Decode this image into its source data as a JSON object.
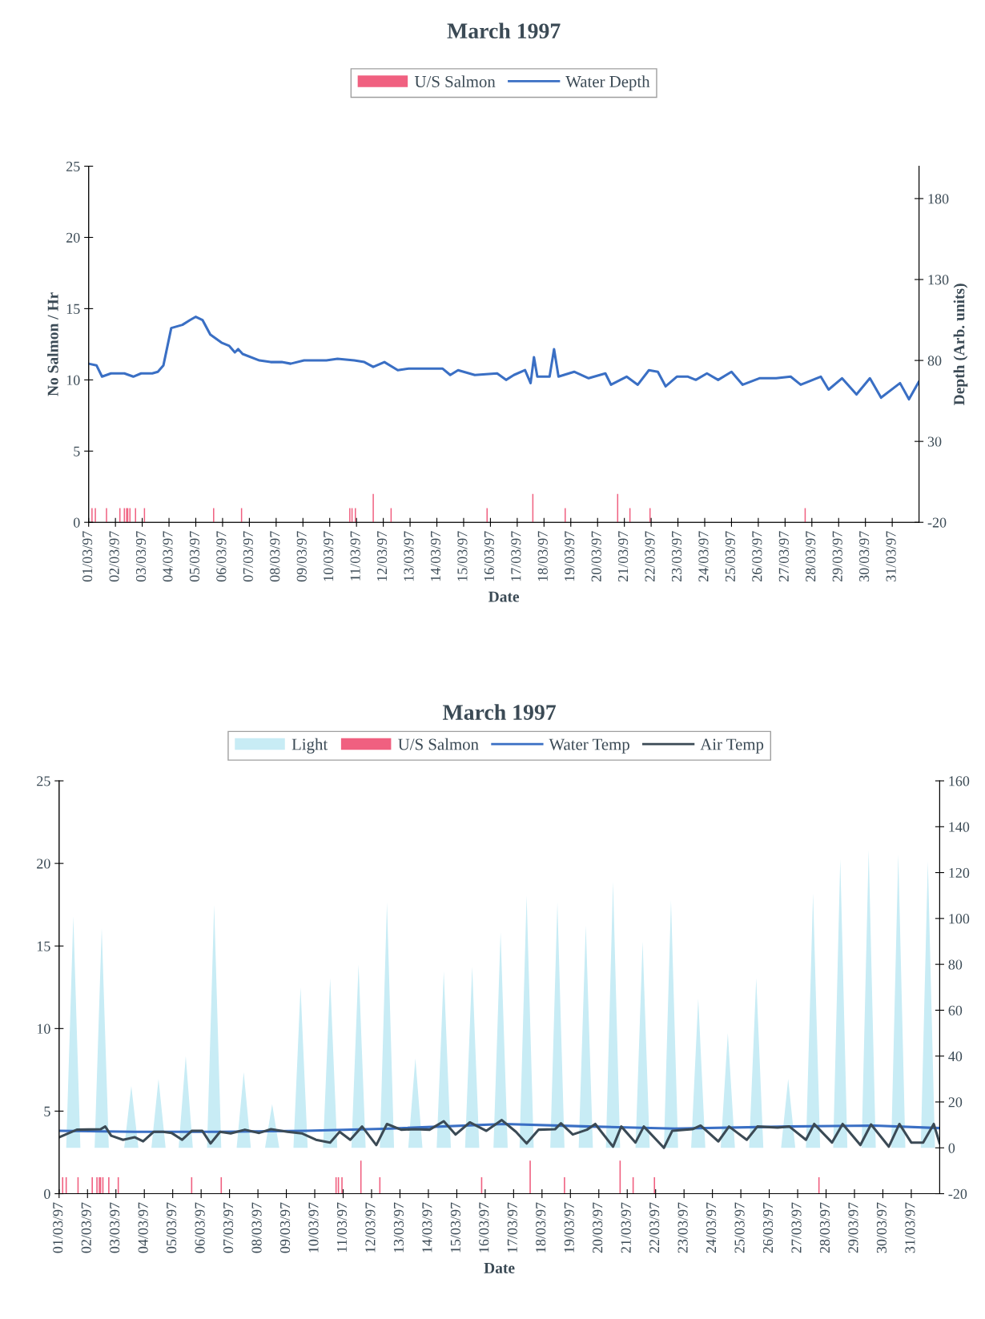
{
  "chart_data": [
    {
      "type": "line",
      "title": "March 1997",
      "xlabel": "Date",
      "ylabel": "No Salmon / Hr",
      "y2label": "Depth (Arb. units)",
      "legend": "top",
      "xlim": [
        "1997-03-01",
        "1997-04-01"
      ],
      "xticks": [
        {
          "value": "1997-03-01",
          "label": "01/03/97"
        },
        {
          "value": "1997-03-02",
          "label": "02/03/97"
        },
        {
          "value": "1997-03-03",
          "label": "03/03/97"
        },
        {
          "value": "1997-03-04",
          "label": "04/03/97"
        },
        {
          "value": "1997-03-05",
          "label": "05/03/97"
        },
        {
          "value": "1997-03-06",
          "label": "06/03/97"
        },
        {
          "value": "1997-03-07",
          "label": "07/03/97"
        },
        {
          "value": "1997-03-08",
          "label": "08/03/97"
        },
        {
          "value": "1997-03-09",
          "label": "09/03/97"
        },
        {
          "value": "1997-03-10",
          "label": "10/03/97"
        },
        {
          "value": "1997-03-11",
          "label": "11/03/97"
        },
        {
          "value": "1997-03-12",
          "label": "12/03/97"
        },
        {
          "value": "1997-03-13",
          "label": "13/03/97"
        },
        {
          "value": "1997-03-14",
          "label": "14/03/97"
        },
        {
          "value": "1997-03-15",
          "label": "15/03/97"
        },
        {
          "value": "1997-03-16",
          "label": "16/03/97"
        },
        {
          "value": "1997-03-17",
          "label": "17/03/97"
        },
        {
          "value": "1997-03-18",
          "label": "18/03/97"
        },
        {
          "value": "1997-03-19",
          "label": "19/03/97"
        },
        {
          "value": "1997-03-20",
          "label": "20/03/97"
        },
        {
          "value": "1997-03-21",
          "label": "21/03/97"
        },
        {
          "value": "1997-03-22",
          "label": "22/03/97"
        },
        {
          "value": "1997-03-23",
          "label": "23/03/97"
        },
        {
          "value": "1997-03-24",
          "label": "24/03/97"
        },
        {
          "value": "1997-03-25",
          "label": "25/03/97"
        },
        {
          "value": "1997-03-26",
          "label": "26/03/97"
        },
        {
          "value": "1997-03-27",
          "label": "27/03/97"
        },
        {
          "value": "1997-03-28",
          "label": "28/03/97"
        },
        {
          "value": "1997-03-29",
          "label": "29/03/97"
        },
        {
          "value": "1997-03-30",
          "label": "30/03/97"
        },
        {
          "value": "1997-03-31",
          "label": "31/03/97"
        }
      ],
      "ylim": [
        0,
        25
      ],
      "yticks": [
        0,
        5,
        10,
        15,
        20,
        25
      ],
      "y2lim": [
        -20,
        200
      ],
      "y2ticks": [
        -20,
        30,
        80,
        130,
        180
      ],
      "series": [
        {
          "name": "U/S Salmon",
          "type": "bar",
          "color": "#f06080",
          "x": [
            "1997-03-01T03:00",
            "1997-03-01T06:00",
            "1997-03-01T16:00",
            "1997-03-02T04:00",
            "1997-03-02T08:00",
            "1997-03-02T10:00",
            "1997-03-02T11:00",
            "1997-03-02T13:00",
            "1997-03-02T18:00",
            "1997-03-03T02:00",
            "1997-03-05T16:00",
            "1997-03-06T17:00",
            "1997-03-10T18:00",
            "1997-03-10T20:00",
            "1997-03-10T23:00",
            "1997-03-11T15:00",
            "1997-03-12T07:00",
            "1997-03-15T21:00",
            "1997-03-17T14:00",
            "1997-03-18T19:00",
            "1997-03-20T18:00",
            "1997-03-21T05:00",
            "1997-03-21T23:00",
            "1997-03-27T18:00"
          ],
          "values": [
            1,
            1,
            1,
            1,
            1,
            1,
            1,
            1,
            1,
            1,
            1,
            1,
            1,
            1,
            1,
            2,
            1,
            1,
            2,
            1,
            2,
            1,
            1,
            1
          ]
        },
        {
          "name": "Water Depth",
          "axis": "y2",
          "color": "#3a6fc4",
          "x": [
            "1997-03-01T00:00",
            "1997-03-01T07:00",
            "1997-03-01T12:00",
            "1997-03-01T20:00",
            "1997-03-02T08:00",
            "1997-03-02T16:00",
            "1997-03-02T23:00",
            "1997-03-03T09:00",
            "1997-03-03T14:00",
            "1997-03-03T19:00",
            "1997-03-04T02:00",
            "1997-03-04T07:00",
            "1997-03-04T12:00",
            "1997-03-04T19:00",
            "1997-03-05T00:00",
            "1997-03-05T06:00",
            "1997-03-05T13:00",
            "1997-03-05T23:00",
            "1997-03-06T06:00",
            "1997-03-06T11:00",
            "1997-03-06T14:00",
            "1997-03-06T18:00",
            "1997-03-07T09:00",
            "1997-03-07T19:00",
            "1997-03-08T05:00",
            "1997-03-08T13:00",
            "1997-03-09T01:00",
            "1997-03-09T21:00",
            "1997-03-10T07:00",
            "1997-03-10T22:00",
            "1997-03-11T07:00",
            "1997-03-11T15:00",
            "1997-03-12T01:00",
            "1997-03-12T13:00",
            "1997-03-12T23:00",
            "1997-03-13T19:00",
            "1997-03-14T05:00",
            "1997-03-14T12:00",
            "1997-03-14T19:00",
            "1997-03-15T10:00",
            "1997-03-16T06:00",
            "1997-03-16T14:00",
            "1997-03-16T21:00",
            "1997-03-17T07:00",
            "1997-03-17T12:00",
            "1997-03-17T15:00",
            "1997-03-17T18:00",
            "1997-03-18T05:00",
            "1997-03-18T09:00",
            "1997-03-18T13:00",
            "1997-03-19T03:00",
            "1997-03-19T16:00",
            "1997-03-20T07:00",
            "1997-03-20T12:00",
            "1997-03-21T02:00",
            "1997-03-21T12:00",
            "1997-03-21T22:00",
            "1997-03-22T06:00",
            "1997-03-22T13:00",
            "1997-03-22T23:00",
            "1997-03-23T09:00",
            "1997-03-23T16:00",
            "1997-03-24T02:00",
            "1997-03-24T12:00",
            "1997-03-25T00:00",
            "1997-03-25T10:00",
            "1997-03-26T01:00",
            "1997-03-26T16:00",
            "1997-03-27T05:00",
            "1997-03-27T14:00",
            "1997-03-28T08:00",
            "1997-03-28T15:00",
            "1997-03-29T03:00",
            "1997-03-29T16:00",
            "1997-03-30T04:00",
            "1997-03-30T14:00",
            "1997-03-31T07:00",
            "1997-03-31T15:00",
            "1997-04-01T00:00"
          ],
          "values": [
            78,
            77,
            70,
            72,
            72,
            70,
            72,
            72,
            73,
            77,
            100,
            101,
            102,
            105,
            107,
            105,
            96,
            91,
            89,
            85,
            87,
            84,
            80,
            79,
            79,
            78,
            80,
            80,
            81,
            80,
            79,
            76,
            79,
            74,
            75,
            75,
            75,
            71,
            74,
            71,
            72,
            68,
            71,
            74,
            66,
            82,
            70,
            70,
            87,
            70,
            73,
            69,
            72,
            65,
            70,
            65,
            74,
            73,
            64,
            70,
            70,
            68,
            72,
            68,
            73,
            65,
            69,
            69,
            70,
            65,
            70,
            62,
            69,
            59,
            69,
            57,
            66,
            56,
            67
          ]
        }
      ]
    },
    {
      "type": "line",
      "title": "March 1997",
      "xlabel": "Date",
      "legend": "top",
      "xlim": [
        "1997-03-01",
        "1997-04-01"
      ],
      "xticks": [
        {
          "value": "1997-03-01",
          "label": "01/03/97"
        },
        {
          "value": "1997-03-02",
          "label": "02/03/97"
        },
        {
          "value": "1997-03-03",
          "label": "03/03/97"
        },
        {
          "value": "1997-03-04",
          "label": "04/03/97"
        },
        {
          "value": "1997-03-05",
          "label": "05/03/97"
        },
        {
          "value": "1997-03-06",
          "label": "06/03/97"
        },
        {
          "value": "1997-03-07",
          "label": "07/03/97"
        },
        {
          "value": "1997-03-08",
          "label": "08/03/97"
        },
        {
          "value": "1997-03-09",
          "label": "09/03/97"
        },
        {
          "value": "1997-03-10",
          "label": "10/03/97"
        },
        {
          "value": "1997-03-11",
          "label": "11/03/97"
        },
        {
          "value": "1997-03-12",
          "label": "12/03/97"
        },
        {
          "value": "1997-03-13",
          "label": "13/03/97"
        },
        {
          "value": "1997-03-14",
          "label": "14/03/97"
        },
        {
          "value": "1997-03-15",
          "label": "15/03/97"
        },
        {
          "value": "1997-03-16",
          "label": "16/03/97"
        },
        {
          "value": "1997-03-17",
          "label": "17/03/97"
        },
        {
          "value": "1997-03-18",
          "label": "18/03/97"
        },
        {
          "value": "1997-03-19",
          "label": "19/03/97"
        },
        {
          "value": "1997-03-20",
          "label": "20/03/97"
        },
        {
          "value": "1997-03-21",
          "label": "21/03/97"
        },
        {
          "value": "1997-03-22",
          "label": "22/03/97"
        },
        {
          "value": "1997-03-23",
          "label": "23/03/97"
        },
        {
          "value": "1997-03-24",
          "label": "24/03/97"
        },
        {
          "value": "1997-03-25",
          "label": "25/03/97"
        },
        {
          "value": "1997-03-26",
          "label": "26/03/97"
        },
        {
          "value": "1997-03-27",
          "label": "27/03/97"
        },
        {
          "value": "1997-03-28",
          "label": "28/03/97"
        },
        {
          "value": "1997-03-29",
          "label": "29/03/97"
        },
        {
          "value": "1997-03-30",
          "label": "30/03/97"
        },
        {
          "value": "1997-03-31",
          "label": "31/03/97"
        }
      ],
      "ylim": [
        0,
        25
      ],
      "yticks": [
        0,
        5,
        10,
        15,
        20,
        25
      ],
      "y2lim": [
        -20,
        160
      ],
      "y2ticks": [
        -20,
        0,
        20,
        40,
        60,
        80,
        100,
        120,
        140,
        160
      ],
      "series": [
        {
          "name": "Light",
          "type": "area",
          "axis": "y2",
          "color": "#c8ecf5",
          "x": [
            "1997-03-01T06:00",
            "1997-03-01T12:00",
            "1997-03-01T18:00",
            "1997-03-02T06:00",
            "1997-03-02T12:00",
            "1997-03-02T18:00",
            "1997-03-03T07:00",
            "1997-03-03T13:00",
            "1997-03-03T19:00",
            "1997-03-04T06:00",
            "1997-03-04T12:00",
            "1997-03-04T18:00",
            "1997-03-05T05:00",
            "1997-03-05T11:00",
            "1997-03-05T17:00",
            "1997-03-06T05:00",
            "1997-03-06T11:00",
            "1997-03-06T17:00",
            "1997-03-07T06:00",
            "1997-03-07T12:00",
            "1997-03-07T18:00",
            "1997-03-08T06:00",
            "1997-03-08T12:00",
            "1997-03-08T18:00",
            "1997-03-09T06:00",
            "1997-03-09T12:00",
            "1997-03-09T18:00",
            "1997-03-10T07:00",
            "1997-03-10T13:00",
            "1997-03-10T19:00",
            "1997-03-11T07:00",
            "1997-03-11T13:00",
            "1997-03-11T19:00",
            "1997-03-12T07:00",
            "1997-03-12T13:00",
            "1997-03-12T19:00",
            "1997-03-13T07:00",
            "1997-03-13T13:00",
            "1997-03-13T19:00",
            "1997-03-14T07:00",
            "1997-03-14T13:00",
            "1997-03-14T19:00",
            "1997-03-15T07:00",
            "1997-03-15T13:00",
            "1997-03-15T19:00",
            "1997-03-16T07:00",
            "1997-03-16T13:00",
            "1997-03-16T19:00",
            "1997-03-17T05:00",
            "1997-03-17T11:00",
            "1997-03-17T17:00",
            "1997-03-18T07:00",
            "1997-03-18T13:00",
            "1997-03-18T19:00",
            "1997-03-19T07:00",
            "1997-03-19T13:00",
            "1997-03-19T19:00",
            "1997-03-20T06:00",
            "1997-03-20T12:00",
            "1997-03-20T18:00",
            "1997-03-21T07:00",
            "1997-03-21T13:00",
            "1997-03-21T19:00",
            "1997-03-22T07:00",
            "1997-03-22T13:00",
            "1997-03-22T19:00",
            "1997-03-23T06:00",
            "1997-03-23T12:00",
            "1997-03-23T18:00",
            "1997-03-24T07:00",
            "1997-03-24T13:00",
            "1997-03-24T19:00",
            "1997-03-25T07:00",
            "1997-03-25T13:00",
            "1997-03-25T19:00",
            "1997-03-26T10:00",
            "1997-03-26T16:00",
            "1997-03-26T22:00",
            "1997-03-27T07:00",
            "1997-03-27T13:00",
            "1997-03-27T19:00",
            "1997-03-28T06:00",
            "1997-03-28T12:00",
            "1997-03-28T18:00",
            "1997-03-29T06:00",
            "1997-03-29T12:00",
            "1997-03-29T18:00",
            "1997-03-30T07:00",
            "1997-03-30T13:00",
            "1997-03-30T19:00",
            "1997-03-31T08:00",
            "1997-03-31T14:00",
            "1997-03-31T20:00"
          ],
          "values": [
            0,
            101,
            0,
            0,
            96,
            0,
            0,
            27,
            0,
            0,
            30,
            0,
            0,
            40,
            0,
            0,
            106,
            0,
            0,
            33,
            0,
            0,
            19,
            0,
            0,
            70,
            0,
            0,
            74,
            0,
            0,
            80,
            0,
            0,
            107,
            0,
            0,
            39,
            0,
            0,
            77,
            0,
            0,
            79,
            0,
            0,
            94,
            0,
            0,
            110,
            0,
            0,
            107,
            0,
            0,
            97,
            0,
            0,
            116,
            0,
            0,
            90,
            0,
            0,
            108,
            0,
            0,
            65,
            0,
            0,
            50,
            0,
            0,
            74,
            0,
            0,
            30,
            0,
            0,
            111,
            0,
            0,
            126,
            0,
            0,
            130,
            0,
            0,
            128,
            0,
            0,
            125,
            0
          ]
        },
        {
          "name": "U/S Salmon",
          "type": "bar",
          "color": "#f06080",
          "x": [
            "1997-03-01T03:00",
            "1997-03-01T06:00",
            "1997-03-01T16:00",
            "1997-03-02T04:00",
            "1997-03-02T08:00",
            "1997-03-02T10:00",
            "1997-03-02T11:00",
            "1997-03-02T13:00",
            "1997-03-02T18:00",
            "1997-03-03T02:00",
            "1997-03-05T16:00",
            "1997-03-06T17:00",
            "1997-03-10T18:00",
            "1997-03-10T20:00",
            "1997-03-10T23:00",
            "1997-03-11T15:00",
            "1997-03-12T07:00",
            "1997-03-15T21:00",
            "1997-03-17T14:00",
            "1997-03-18T19:00",
            "1997-03-20T18:00",
            "1997-03-21T05:00",
            "1997-03-21T23:00",
            "1997-03-27T18:00"
          ],
          "values": [
            1,
            1,
            1,
            1,
            1,
            1,
            1,
            1,
            1,
            1,
            1,
            1,
            1,
            1,
            1,
            2,
            1,
            1,
            2,
            1,
            2,
            1,
            1,
            1
          ]
        },
        {
          "name": "Water Temp",
          "axis": "y2",
          "color": "#3a6fc4",
          "x": [
            "1997-03-01T00:00",
            "1997-03-03T16:00",
            "1997-03-06T16:00",
            "1997-03-09T16:00",
            "1997-03-12T16:00",
            "1997-03-16T16:00",
            "1997-03-19T16:00",
            "1997-03-22T16:00",
            "1997-03-26T17:00",
            "1997-03-29T17:00",
            "1997-04-01T00:00"
          ],
          "values": [
            7.4,
            7.0,
            7.0,
            7.4,
            8.4,
            10.4,
            9.3,
            8.4,
            9.3,
            9.7,
            8.6
          ]
        },
        {
          "name": "Air Temp",
          "axis": "y2",
          "color": "#3b4a55",
          "x": [
            "1997-03-01T00:00",
            "1997-03-01T11:00",
            "1997-03-01T15:00",
            "1997-03-02T11:00",
            "1997-03-02T15:00",
            "1997-03-02T20:00",
            "1997-03-03T06:00",
            "1997-03-03T16:00",
            "1997-03-03T23:00",
            "1997-03-04T08:00",
            "1997-03-04T16:00",
            "1997-03-04T23:00",
            "1997-03-05T08:00",
            "1997-03-05T16:00",
            "1997-03-06T01:00",
            "1997-03-06T08:00",
            "1997-03-06T16:00",
            "1997-03-07T01:00",
            "1997-03-07T13:00",
            "1997-03-08T01:00",
            "1997-03-08T11:00",
            "1997-03-09T01:00",
            "1997-03-09T13:00",
            "1997-03-10T01:00",
            "1997-03-10T13:00",
            "1997-03-10T21:00",
            "1997-03-11T06:00",
            "1997-03-11T16:00",
            "1997-03-12T04:00",
            "1997-03-12T13:00",
            "1997-03-13T01:00",
            "1997-03-13T13:00",
            "1997-03-14T01:00",
            "1997-03-14T13:00",
            "1997-03-14T23:00",
            "1997-03-15T11:00",
            "1997-03-16T01:00",
            "1997-03-16T14:00",
            "1997-03-17T02:00",
            "1997-03-17T11:00",
            "1997-03-17T21:00",
            "1997-03-18T11:00",
            "1997-03-18T16:00",
            "1997-03-19T02:00",
            "1997-03-19T14:00",
            "1997-03-19T21:00",
            "1997-03-20T12:00",
            "1997-03-20T19:00",
            "1997-03-21T07:00",
            "1997-03-21T14:00",
            "1997-03-22T07:00",
            "1997-03-22T14:00",
            "1997-03-23T07:00",
            "1997-03-23T14:00",
            "1997-03-24T05:00",
            "1997-03-24T14:00",
            "1997-03-25T05:00",
            "1997-03-25T14:00",
            "1997-03-26T07:00",
            "1997-03-26T17:00",
            "1997-03-27T07:00",
            "1997-03-27T14:00",
            "1997-03-28T05:00",
            "1997-03-28T14:00",
            "1997-03-29T05:00",
            "1997-03-29T14:00",
            "1997-03-30T05:00",
            "1997-03-30T14:00",
            "1997-03-31T00:00",
            "1997-03-31T10:00",
            "1997-03-31T19:00",
            "1997-04-01T00:00"
          ],
          "values": [
            4.6,
            7.0,
            7.9,
            8.1,
            9.3,
            5.3,
            3.5,
            4.6,
            2.8,
            7.0,
            7.0,
            6.5,
            3.5,
            7.4,
            7.4,
            1.9,
            7.0,
            6.3,
            7.9,
            6.5,
            8.1,
            7.0,
            6.3,
            3.5,
            2.3,
            7.0,
            3.5,
            9.3,
            1.2,
            10.4,
            7.9,
            8.1,
            7.9,
            11.6,
            5.8,
            11.1,
            7.4,
            12.1,
            7.0,
            1.9,
            7.9,
            8.1,
            10.7,
            5.8,
            7.9,
            10.4,
            0.5,
            9.3,
            2.3,
            9.3,
            0,
            7.4,
            8.1,
            9.7,
            2.8,
            9.3,
            3.5,
            9.3,
            8.8,
            9.3,
            3.5,
            10.4,
            2.3,
            10.4,
            1.2,
            10.2,
            0.5,
            10.4,
            2.3,
            2.3,
            10.4,
            1.9
          ]
        }
      ]
    }
  ]
}
